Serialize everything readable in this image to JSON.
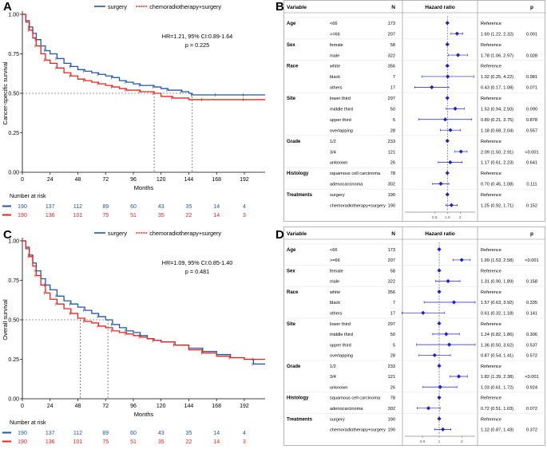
{
  "colors": {
    "surgery": "#2057a7",
    "chemo": "#e8231b",
    "forest_point": "#1f1fd2",
    "grid": "#cfcfcf",
    "text": "#000000",
    "axis": "#000000"
  },
  "panels": {
    "A": {
      "letter": "A"
    },
    "B": {
      "letter": "B"
    },
    "C": {
      "letter": "C"
    },
    "D": {
      "letter": "D"
    }
  },
  "chart_data": [
    {
      "id": "A",
      "type": "line",
      "title": "",
      "legend": [
        {
          "label": "surgery",
          "series": "surgery"
        },
        {
          "label": "chemoradiotherapy+surgery",
          "series": "chemo"
        }
      ],
      "xlabel": "Months",
      "ylabel": "Cancer-specific survival",
      "xlim": [
        0,
        210
      ],
      "ylim": [
        0,
        1
      ],
      "xticks": [
        0,
        24,
        48,
        72,
        96,
        120,
        144,
        168,
        192
      ],
      "yticks": [
        0.0,
        0.25,
        0.5,
        0.75,
        1.0
      ],
      "ytick_labels": [
        "0.00",
        "0.25",
        "0.50",
        "0.75",
        "1.00"
      ],
      "annotation": [
        "HR=1.21, 95% CI:0.89-1.64",
        "p = 0.225"
      ],
      "median_line": 0.5,
      "medians": [
        114,
        147
      ],
      "series": [
        {
          "name": "surgery",
          "x": [
            0,
            3,
            6,
            9,
            12,
            16,
            20,
            24,
            30,
            36,
            42,
            48,
            54,
            60,
            66,
            72,
            78,
            84,
            90,
            96,
            102,
            108,
            114,
            120,
            126,
            132,
            138,
            144,
            147,
            156,
            168,
            180,
            192,
            210
          ],
          "y": [
            1.0,
            0.96,
            0.92,
            0.88,
            0.84,
            0.8,
            0.77,
            0.75,
            0.72,
            0.69,
            0.67,
            0.65,
            0.64,
            0.63,
            0.62,
            0.61,
            0.6,
            0.58,
            0.57,
            0.56,
            0.55,
            0.55,
            0.54,
            0.53,
            0.52,
            0.52,
            0.51,
            0.5,
            0.49,
            0.49,
            0.49,
            0.49,
            0.49,
            0.49
          ]
        },
        {
          "name": "chemoradiotherapy+surgery",
          "x": [
            0,
            3,
            6,
            9,
            12,
            16,
            20,
            24,
            30,
            36,
            42,
            48,
            54,
            60,
            66,
            72,
            78,
            84,
            90,
            96,
            102,
            108,
            114,
            120,
            130,
            144,
            156,
            168,
            192,
            210
          ],
          "y": [
            1.0,
            0.95,
            0.9,
            0.85,
            0.8,
            0.75,
            0.71,
            0.69,
            0.66,
            0.63,
            0.61,
            0.59,
            0.58,
            0.57,
            0.56,
            0.55,
            0.54,
            0.53,
            0.52,
            0.52,
            0.51,
            0.51,
            0.5,
            0.48,
            0.47,
            0.46,
            0.46,
            0.46,
            0.46,
            0.46
          ]
        }
      ],
      "risk_table": {
        "title": "Number at risk",
        "rows": [
          {
            "series": "surgery",
            "values": [
              "190",
              "137",
              "112",
              "89",
              "60",
              "43",
              "35",
              "14",
              "4"
            ]
          },
          {
            "series": "chemo",
            "values": [
              "190",
              "136",
              "101",
              "75",
              "51",
              "35",
              "22",
              "14",
              "3"
            ]
          }
        ]
      }
    },
    {
      "id": "C",
      "type": "line",
      "title": "",
      "legend": [
        {
          "label": "surgery",
          "series": "surgery"
        },
        {
          "label": "chemoradiotherapy+surgery",
          "series": "chemo"
        }
      ],
      "xlabel": "Months",
      "ylabel": "Overall survival",
      "xlim": [
        0,
        210
      ],
      "ylim": [
        0,
        1
      ],
      "xticks": [
        0,
        24,
        48,
        72,
        96,
        120,
        144,
        168,
        192
      ],
      "yticks": [
        0.0,
        0.25,
        0.5,
        0.75,
        1.0
      ],
      "ytick_labels": [
        "0.00",
        "0.25",
        "0.50",
        "0.75",
        "1.00"
      ],
      "annotation": [
        "HR=1.09, 95% CI:0.85-1.40",
        "p = 0.481"
      ],
      "median_line": 0.5,
      "medians": [
        50,
        74
      ],
      "series": [
        {
          "name": "surgery",
          "x": [
            0,
            3,
            6,
            9,
            12,
            16,
            20,
            24,
            30,
            36,
            42,
            48,
            54,
            60,
            66,
            72,
            78,
            84,
            90,
            96,
            102,
            108,
            114,
            120,
            132,
            144,
            156,
            168,
            180,
            192,
            200,
            210
          ],
          "y": [
            1.0,
            0.96,
            0.91,
            0.86,
            0.81,
            0.76,
            0.72,
            0.69,
            0.65,
            0.62,
            0.6,
            0.58,
            0.56,
            0.54,
            0.52,
            0.5,
            0.47,
            0.45,
            0.43,
            0.42,
            0.4,
            0.38,
            0.37,
            0.36,
            0.34,
            0.32,
            0.3,
            0.28,
            0.26,
            0.25,
            0.22,
            0.22
          ]
        },
        {
          "name": "chemoradiotherapy+surgery",
          "x": [
            0,
            3,
            6,
            9,
            12,
            16,
            20,
            24,
            30,
            36,
            42,
            48,
            54,
            60,
            66,
            72,
            78,
            84,
            90,
            96,
            102,
            108,
            114,
            120,
            132,
            144,
            156,
            168,
            180,
            192,
            200,
            210
          ],
          "y": [
            1.0,
            0.95,
            0.9,
            0.84,
            0.78,
            0.72,
            0.67,
            0.63,
            0.6,
            0.57,
            0.54,
            0.51,
            0.49,
            0.48,
            0.46,
            0.45,
            0.43,
            0.42,
            0.41,
            0.4,
            0.39,
            0.38,
            0.37,
            0.36,
            0.34,
            0.31,
            0.29,
            0.27,
            0.26,
            0.25,
            0.25,
            0.25
          ]
        }
      ],
      "risk_table": {
        "title": "Number at risk",
        "rows": [
          {
            "series": "surgery",
            "values": [
              "190",
              "137",
              "112",
              "89",
              "60",
              "43",
              "35",
              "14",
              "4"
            ]
          },
          {
            "series": "chemo",
            "values": [
              "190",
              "136",
              "101",
              "75",
              "51",
              "35",
              "22",
              "14",
              "3"
            ]
          }
        ]
      }
    },
    {
      "id": "B",
      "type": "forest",
      "columns": {
        "variable": "Variable",
        "n": "N",
        "hr": "Hazard ratio",
        "p": "p"
      },
      "xticks": [
        {
          "v": 0.5,
          "label": "0.5"
        },
        {
          "v": 1,
          "label": "1.0"
        },
        {
          "v": 2,
          "label": "2"
        }
      ],
      "xlim": [
        0.1,
        4.5
      ],
      "rows": [
        {
          "group": "Age",
          "label": "<66",
          "n": "173",
          "text": "Reference",
          "hr": 1,
          "lo": null,
          "hi": null,
          "p": ""
        },
        {
          "group": "",
          "label": ">=66",
          "n": "207",
          "text": "1.69 (1.22, 2.32)",
          "hr": 1.69,
          "lo": 1.22,
          "hi": 2.32,
          "p": "0.001"
        },
        {
          "group": "Sex",
          "label": "female",
          "n": "58",
          "text": "Reference",
          "hr": 1,
          "lo": null,
          "hi": null,
          "p": ""
        },
        {
          "group": "",
          "label": "male",
          "n": "322",
          "text": "1.78 (1.06, 2.97)",
          "hr": 1.78,
          "lo": 1.06,
          "hi": 2.97,
          "p": "0.028"
        },
        {
          "group": "Race",
          "label": "white",
          "n": "356",
          "text": "Reference",
          "hr": 1,
          "lo": null,
          "hi": null,
          "p": ""
        },
        {
          "group": "",
          "label": "black",
          "n": "7",
          "text": "1.02 (0.25, 4.22)",
          "hr": 1.02,
          "lo": 0.25,
          "hi": 4.22,
          "p": "0.981"
        },
        {
          "group": "",
          "label": "others",
          "n": "17",
          "text": "0.43 (0.17, 1.08)",
          "hr": 0.43,
          "lo": 0.17,
          "hi": 1.08,
          "p": "0.071"
        },
        {
          "group": "Site",
          "label": "lower third",
          "n": "297",
          "text": "Reference",
          "hr": 1,
          "lo": null,
          "hi": null,
          "p": ""
        },
        {
          "group": "",
          "label": "middle third",
          "n": "50",
          "text": "1.53 (0.94, 2.50)",
          "hr": 1.53,
          "lo": 0.94,
          "hi": 2.5,
          "p": "0.090"
        },
        {
          "group": "",
          "label": "upper third",
          "n": "5",
          "text": "0.89 (0.21, 3.75)",
          "hr": 0.89,
          "lo": 0.21,
          "hi": 3.75,
          "p": "0.878"
        },
        {
          "group": "",
          "label": "overlapping",
          "n": "28",
          "text": "1.18 (0.68, 2.04)",
          "hr": 1.18,
          "lo": 0.68,
          "hi": 2.04,
          "p": "0.557"
        },
        {
          "group": "Grade",
          "label": "1/2",
          "n": "233",
          "text": "Reference",
          "hr": 1,
          "lo": null,
          "hi": null,
          "p": ""
        },
        {
          "group": "",
          "label": "3/4",
          "n": "121",
          "text": "2.09 (1.50, 2.91)",
          "hr": 2.09,
          "lo": 1.5,
          "hi": 2.91,
          "p": "<0.001"
        },
        {
          "group": "",
          "label": "unknown",
          "n": "26",
          "text": "1.17 (0.61, 2.23)",
          "hr": 1.17,
          "lo": 0.61,
          "hi": 2.23,
          "p": "0.641"
        },
        {
          "group": "Histology",
          "label": "squamous cell carcinoma",
          "n": "78",
          "text": "Reference",
          "hr": 1,
          "lo": null,
          "hi": null,
          "p": ""
        },
        {
          "group": "",
          "label": "adenocarcinoma",
          "n": "302",
          "text": "0.70 (0.45, 1.08)",
          "hr": 0.7,
          "lo": 0.45,
          "hi": 1.08,
          "p": "0.111"
        },
        {
          "group": "Treatments",
          "label": "surgery",
          "n": "190",
          "text": "Reference",
          "hr": 1,
          "lo": null,
          "hi": null,
          "p": ""
        },
        {
          "group": "",
          "label": "chemoradiotherapy+surgery",
          "n": "190",
          "text": "1.25 (0.92, 1.71)",
          "hr": 1.25,
          "lo": 0.92,
          "hi": 1.71,
          "p": "0.152"
        }
      ]
    },
    {
      "id": "D",
      "type": "forest",
      "columns": {
        "variable": "Variable",
        "n": "N",
        "hr": "Hazard ratio",
        "p": "p"
      },
      "xticks": [
        {
          "v": 0.6,
          "label": "0.6"
        },
        {
          "v": 1,
          "label": "1"
        },
        {
          "v": 2,
          "label": "2"
        }
      ],
      "xlim": [
        0.35,
        3.0
      ],
      "rows": [
        {
          "group": "Age",
          "label": "<66",
          "n": "173",
          "text": "Reference",
          "hr": 1,
          "lo": null,
          "hi": null,
          "p": ""
        },
        {
          "group": "",
          "label": ">=66",
          "n": "207",
          "text": "1.99 (1.53, 2.58)",
          "hr": 1.99,
          "lo": 1.53,
          "hi": 2.58,
          "p": "<0.001"
        },
        {
          "group": "Sex",
          "label": "female",
          "n": "58",
          "text": "Reference",
          "hr": 1,
          "lo": null,
          "hi": null,
          "p": ""
        },
        {
          "group": "",
          "label": "male",
          "n": "322",
          "text": "1.31 (0.90, 1.89)",
          "hr": 1.31,
          "lo": 0.9,
          "hi": 1.89,
          "p": "0.158"
        },
        {
          "group": "Race",
          "label": "white",
          "n": "356",
          "text": "Reference",
          "hr": 1,
          "lo": null,
          "hi": null,
          "p": ""
        },
        {
          "group": "",
          "label": "black",
          "n": "7",
          "text": "1.57 (0.63, 3.92)",
          "hr": 1.57,
          "lo": 0.63,
          "hi": 3.92,
          "p": "0.335"
        },
        {
          "group": "",
          "label": "others",
          "n": "17",
          "text": "0.61 (0.32, 1.18)",
          "hr": 0.61,
          "lo": 0.32,
          "hi": 1.18,
          "p": "0.141"
        },
        {
          "group": "Site",
          "label": "lower third",
          "n": "297",
          "text": "Reference",
          "hr": 1,
          "lo": null,
          "hi": null,
          "p": ""
        },
        {
          "group": "",
          "label": "middle third",
          "n": "50",
          "text": "1.24 (0.82, 1.86)",
          "hr": 1.24,
          "lo": 0.82,
          "hi": 1.86,
          "p": "0.306"
        },
        {
          "group": "",
          "label": "upper third",
          "n": "5",
          "text": "1.36 (0.50, 3.62)",
          "hr": 1.36,
          "lo": 0.5,
          "hi": 3.62,
          "p": "0.537"
        },
        {
          "group": "",
          "label": "overlapping",
          "n": "28",
          "text": "0.87 (0.54, 1.41)",
          "hr": 0.87,
          "lo": 0.54,
          "hi": 1.41,
          "p": "0.572"
        },
        {
          "group": "Grade",
          "label": "1/2",
          "n": "233",
          "text": "Reference",
          "hr": 1,
          "lo": null,
          "hi": null,
          "p": ""
        },
        {
          "group": "",
          "label": "3/4",
          "n": "121",
          "text": "1.82 (1.39, 2.38)",
          "hr": 1.82,
          "lo": 1.39,
          "hi": 2.38,
          "p": "<0.001"
        },
        {
          "group": "",
          "label": "unknown",
          "n": "26",
          "text": "1.03 (0.61, 1.72)",
          "hr": 1.03,
          "lo": 0.61,
          "hi": 1.72,
          "p": "0.924"
        },
        {
          "group": "Histology",
          "label": "squamous cell carcinoma",
          "n": "78",
          "text": "Reference",
          "hr": 1,
          "lo": null,
          "hi": null,
          "p": ""
        },
        {
          "group": "",
          "label": "adenocarcinoma",
          "n": "302",
          "text": "0.72 (0.51, 1.03)",
          "hr": 0.72,
          "lo": 0.51,
          "hi": 1.03,
          "p": "0.072"
        },
        {
          "group": "Treatments",
          "label": "surgery",
          "n": "190",
          "text": "Reference",
          "hr": 1,
          "lo": null,
          "hi": null,
          "p": ""
        },
        {
          "group": "",
          "label": "chemoradiotherapy+surgery",
          "n": "190",
          "text": "1.12 (0.87, 1.43)",
          "hr": 1.12,
          "lo": 0.87,
          "hi": 1.43,
          "p": "0.372"
        }
      ]
    }
  ]
}
